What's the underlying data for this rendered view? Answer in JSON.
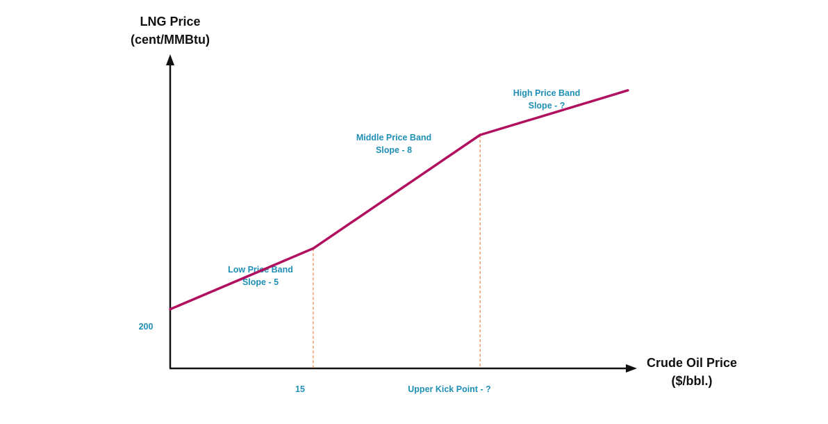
{
  "colors": {
    "line": "#b0105e",
    "label": "#1f8fb5",
    "axis": "#111111",
    "guide": "#f08a4b"
  },
  "chart_data": {
    "type": "line",
    "title": "",
    "ylabel_lines": [
      "LNG Price",
      "(cent/MMBtu)"
    ],
    "xlabel_lines": [
      "Crude Oil Price",
      "($/bbl.)"
    ],
    "y_tick_labels": [
      "200"
    ],
    "x_tick_labels": [
      "15",
      "Upper Kick Point - ?"
    ],
    "series": [
      {
        "points": [
          {
            "x": 0,
            "y": 200
          },
          {
            "x": 15,
            "y": 275
          },
          {
            "x": 32.5,
            "y": 415
          },
          {
            "x": 48,
            "y": 470
          }
        ]
      }
    ],
    "band_annotations": [
      {
        "lines": [
          "Low Price Band",
          "Slope - 5"
        ]
      },
      {
        "lines": [
          "Middle Price Band",
          "Slope - 8"
        ]
      },
      {
        "lines": [
          "High Price Band",
          "Slope - ?"
        ]
      }
    ],
    "guide_lines_at_x": [
      15,
      32.5
    ],
    "xlim": [
      0,
      55
    ],
    "ylim": [
      127,
      500
    ],
    "grid": false,
    "legend": "none"
  }
}
